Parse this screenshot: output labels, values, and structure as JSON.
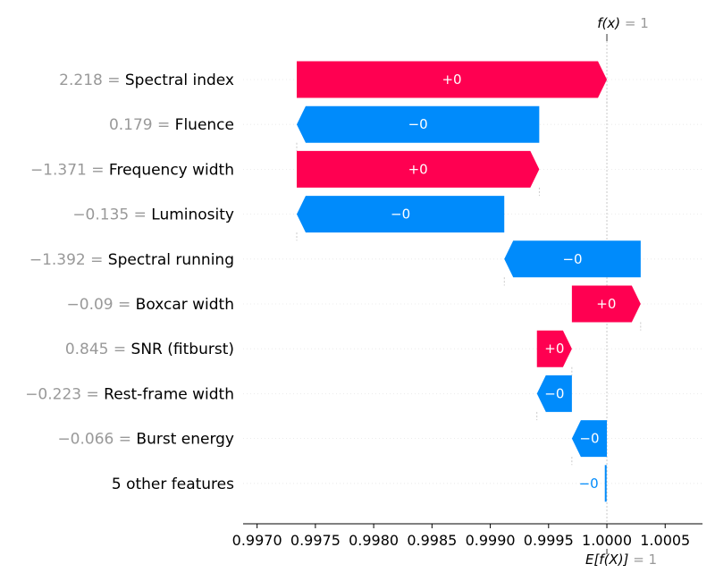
{
  "chart_data": {
    "type": "waterfall",
    "title": "",
    "xlabel": "",
    "ylabel": "",
    "xlim": [
      0.99688,
      1.00082
    ],
    "xticks": [
      0.997,
      0.9975,
      0.998,
      0.9985,
      0.999,
      0.9995,
      1.0,
      1.0005
    ],
    "xtick_labels": [
      "0.9970",
      "0.9975",
      "0.9980",
      "0.9985",
      "0.9990",
      "0.9995",
      "1.0000",
      "1.0005"
    ],
    "fx_label": "f(x)",
    "fx_value_text": " = 1",
    "fx_value": 1.0,
    "efx_label": "E[f(X)]",
    "efx_value_text": " = 1",
    "efx_value": 1.0,
    "positive_color": "#ff0051",
    "negative_color": "#008bfb",
    "grid": false,
    "features": [
      {
        "value": "2.218 = ",
        "name": "Spectral index",
        "start": 0.99734,
        "end": 1.0,
        "label": "+0",
        "sign": "pos"
      },
      {
        "value": "0.179 = ",
        "name": "Fluence",
        "start": 0.99942,
        "end": 0.99734,
        "label": "−0",
        "sign": "neg"
      },
      {
        "value": "−1.371 = ",
        "name": "Frequency width",
        "start": 0.99734,
        "end": 0.99942,
        "label": "+0",
        "sign": "pos"
      },
      {
        "value": "−0.135 = ",
        "name": "Luminosity",
        "start": 0.99912,
        "end": 0.99734,
        "label": "−0",
        "sign": "neg"
      },
      {
        "value": "−1.392 = ",
        "name": "Spectral running",
        "start": 1.00029,
        "end": 0.99912,
        "label": "−0",
        "sign": "neg"
      },
      {
        "value": "−0.09 = ",
        "name": "Boxcar width",
        "start": 0.9997,
        "end": 1.00029,
        "label": "+0",
        "sign": "pos"
      },
      {
        "value": "0.845 = ",
        "name": "SNR (fitburst)",
        "start": 0.9994,
        "end": 0.9997,
        "label": "+0",
        "sign": "pos"
      },
      {
        "value": "−0.223 = ",
        "name": "Rest-frame width",
        "start": 0.9997,
        "end": 0.9994,
        "label": "−0",
        "sign": "neg"
      },
      {
        "value": "−0.066 = ",
        "name": "Burst energy",
        "start": 1.0,
        "end": 0.9997,
        "label": "−0",
        "sign": "neg"
      },
      {
        "value": "",
        "name": "5 other features",
        "start": 1.0,
        "end": 0.99999,
        "label": "−0",
        "sign": "neg"
      }
    ]
  }
}
